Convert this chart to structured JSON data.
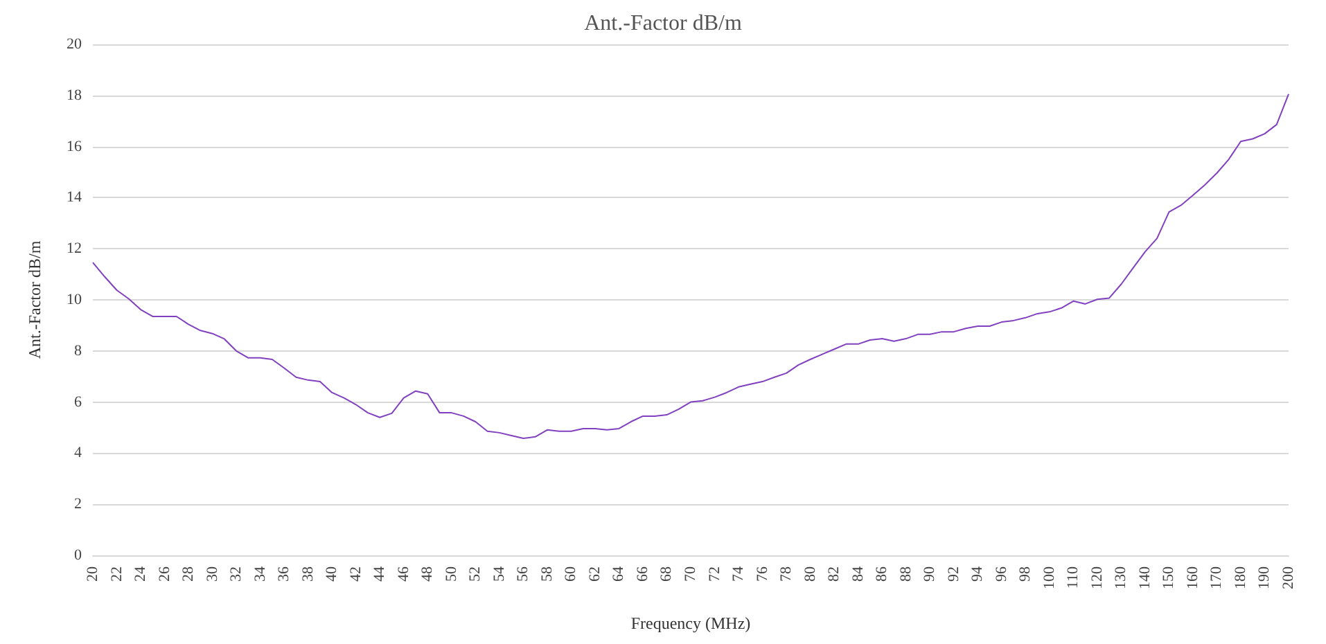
{
  "chart_data": {
    "type": "line",
    "title": "Ant.-Factor dB/m",
    "xlabel": "Frequency (MHz)",
    "ylabel": "Ant.-Factor dB/m",
    "categories": [
      "20",
      null,
      "22",
      null,
      "24",
      null,
      "26",
      null,
      "28",
      null,
      "30",
      null,
      "32",
      null,
      "34",
      null,
      "36",
      null,
      "38",
      null,
      "40",
      null,
      "42",
      null,
      "44",
      null,
      "46",
      null,
      "48",
      null,
      "50",
      null,
      "52",
      null,
      "54",
      null,
      "56",
      null,
      "58",
      null,
      "60",
      null,
      "62",
      null,
      "64",
      null,
      "66",
      null,
      "68",
      null,
      "70",
      null,
      "72",
      null,
      "74",
      null,
      "76",
      null,
      "78",
      null,
      "80",
      null,
      "82",
      null,
      "84",
      null,
      "86",
      null,
      "88",
      null,
      "90",
      null,
      "92",
      null,
      "94",
      null,
      "96",
      null,
      "98",
      null,
      "100",
      null,
      "110",
      null,
      "120",
      null,
      "130",
      null,
      "140",
      null,
      "150",
      null,
      "160",
      null,
      "170",
      null,
      "180",
      null,
      "190",
      null,
      "200"
    ],
    "series": [
      {
        "color": "#8040c0",
        "values": [
          11.46,
          10.9,
          10.38,
          10.04,
          9.62,
          9.35,
          9.35,
          9.35,
          9.04,
          8.8,
          8.68,
          8.47,
          8.0,
          7.73,
          7.73,
          7.67,
          7.33,
          6.97,
          6.86,
          6.8,
          6.37,
          6.16,
          5.9,
          5.58,
          5.4,
          5.56,
          6.16,
          6.43,
          6.32,
          5.58,
          5.58,
          5.45,
          5.23,
          4.86,
          4.8,
          4.69,
          4.58,
          4.64,
          4.91,
          4.86,
          4.86,
          4.96,
          4.96,
          4.91,
          4.96,
          5.23,
          5.45,
          5.45,
          5.5,
          5.72,
          6.0,
          6.05,
          6.19,
          6.37,
          6.59,
          6.7,
          6.8,
          6.97,
          7.13,
          7.45,
          7.67,
          7.87,
          8.07,
          8.27,
          8.27,
          8.43,
          8.48,
          8.38,
          8.48,
          8.65,
          8.65,
          8.75,
          8.75,
          8.88,
          8.97,
          8.97,
          9.13,
          9.19,
          9.3,
          9.46,
          9.53,
          9.68,
          9.95,
          9.84,
          10.02,
          10.07,
          10.61,
          11.25,
          11.88,
          12.41,
          13.44,
          13.7,
          14.09,
          14.5,
          14.96,
          15.5,
          16.2,
          16.3,
          16.5,
          16.86,
          18.05
        ]
      }
    ],
    "ylim": [
      0,
      20
    ],
    "yticks": [
      0,
      2,
      4,
      6,
      8,
      10,
      12,
      14,
      16,
      18,
      20
    ],
    "grid": "y",
    "marker": "none",
    "line_style": "solid"
  }
}
